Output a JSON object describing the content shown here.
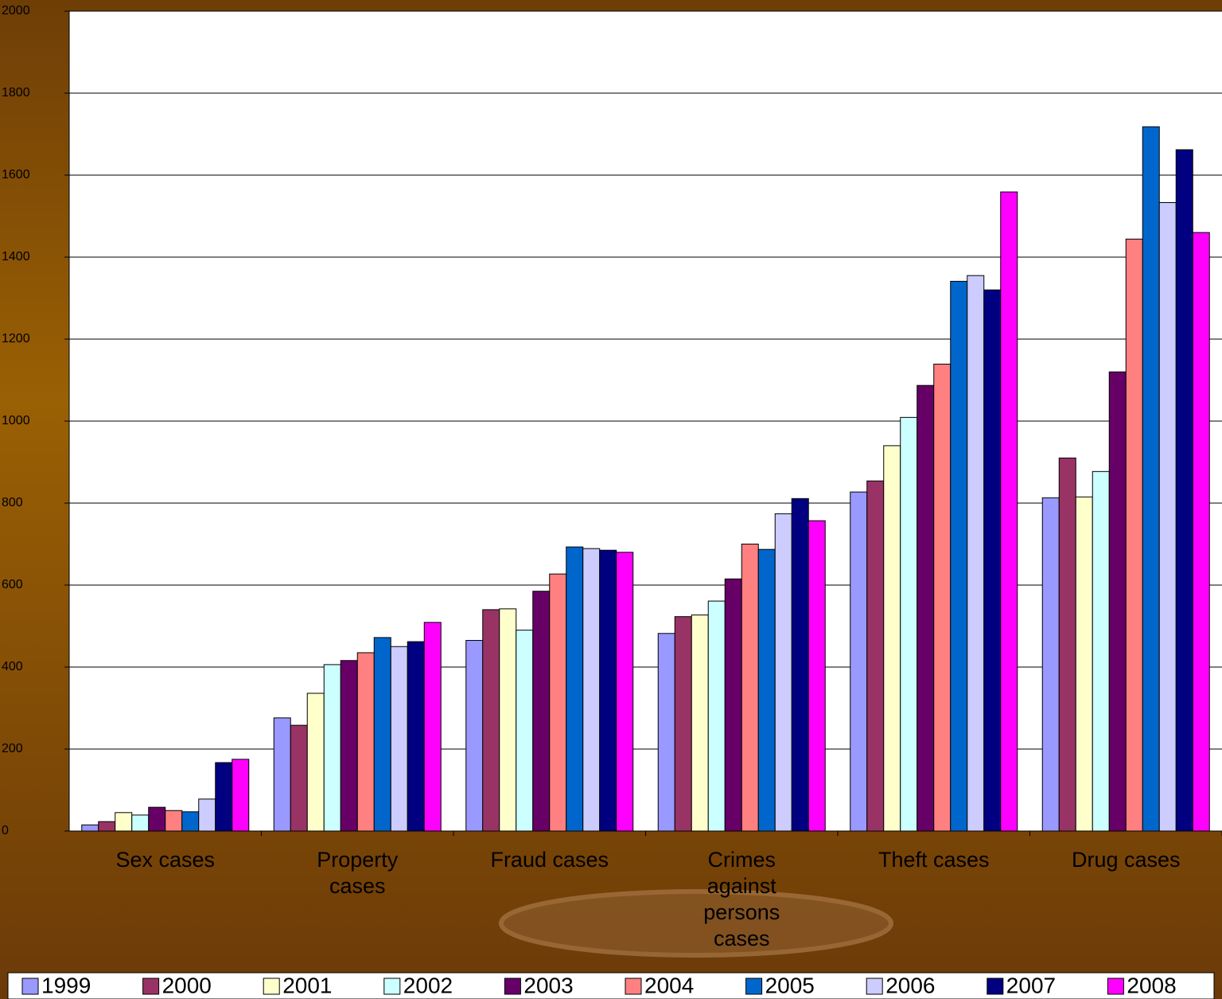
{
  "chart_data": {
    "type": "bar",
    "categories": [
      "Sex cases",
      "Property cases",
      "Fraud cases",
      "Crimes against persons cases",
      "Theft cases",
      "Drug cases"
    ],
    "series": [
      {
        "name": "1999",
        "color": "#9999ff",
        "values": [
          15,
          276,
          465,
          482,
          827,
          813
        ]
      },
      {
        "name": "2000",
        "color": "#993366",
        "values": [
          23,
          258,
          540,
          523,
          854,
          910
        ]
      },
      {
        "name": "2001",
        "color": "#ffffcc",
        "values": [
          45,
          336,
          542,
          527,
          940,
          815
        ]
      },
      {
        "name": "2002",
        "color": "#ccffff",
        "values": [
          39,
          406,
          490,
          561,
          1009,
          877
        ]
      },
      {
        "name": "2003",
        "color": "#660066",
        "values": [
          58,
          416,
          585,
          615,
          1087,
          1120
        ]
      },
      {
        "name": "2004",
        "color": "#ff8080",
        "values": [
          50,
          435,
          627,
          700,
          1139,
          1444
        ]
      },
      {
        "name": "2005",
        "color": "#0066cc",
        "values": [
          47,
          472,
          693,
          687,
          1341,
          1718
        ]
      },
      {
        "name": "2006",
        "color": "#ccccff",
        "values": [
          78,
          450,
          689,
          774,
          1355,
          1533
        ]
      },
      {
        "name": "2007",
        "color": "#000080",
        "values": [
          167,
          462,
          685,
          811,
          1320,
          1662
        ]
      },
      {
        "name": "2008",
        "color": "#ff00ff",
        "values": [
          175,
          509,
          680,
          757,
          1559,
          1460
        ]
      }
    ],
    "ylim": [
      0,
      2000
    ],
    "yticks": [
      0,
      200,
      400,
      600,
      800,
      1000,
      1200,
      1400,
      1600,
      1800,
      2000
    ],
    "grid": true,
    "legend": "bottom"
  }
}
